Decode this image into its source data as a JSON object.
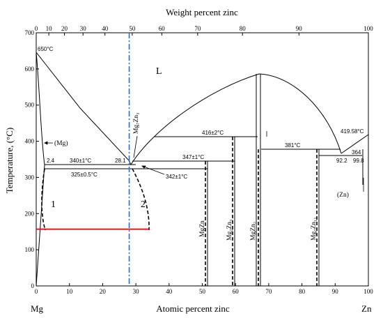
{
  "titles": {
    "top_axis": "Weight percent zinc",
    "bottom_axis": "Atomic percent zinc",
    "y_axis": "Temperature, (°C)",
    "left_element": "Mg",
    "right_element": "Zn"
  },
  "axes": {
    "x_at": {
      "min": 0,
      "max": 100,
      "ticks": [
        "0",
        "10",
        "20",
        "30",
        "40",
        "50",
        "60",
        "70",
        "80",
        "90",
        "100"
      ]
    },
    "y": {
      "min": 0,
      "max": 700,
      "ticks": [
        "0",
        "100",
        "200",
        "300",
        "400",
        "500",
        "600",
        "700"
      ]
    },
    "x_wt_ticks": [
      "0",
      "10",
      "20",
      "30",
      "40",
      "50",
      "60",
      "70",
      "80",
      "90",
      "100"
    ],
    "x_wt_positions_at": [
      0,
      3.8,
      8.5,
      14.1,
      20.7,
      28.9,
      37.8,
      48.6,
      62.1,
      79.1,
      100
    ]
  },
  "phases": {
    "liquid": "L",
    "mg_solid": "(Mg)",
    "zn_solid": "(Zn)",
    "mg7zn3": "Mg₇Zn₃",
    "mgzn": "MgZn",
    "mg2zn3": "Mg₂Zn₃",
    "mgzn2": "MgZn₂",
    "mg2zn11": "Mg₂Zn₁₁"
  },
  "annotations": {
    "mg_melting": "650°C",
    "zn_melting": "419.58°C",
    "t416": "416±2°C",
    "t381": "381°C",
    "t347": "347±1°C",
    "t342": "342±1°C",
    "t340": "340±1°C",
    "t325": "325±0.5°C",
    "c2_4": "2.4",
    "c28_1": "28.1",
    "c364": "364",
    "c92_2": "92.2",
    "c99_8": "99.8",
    "curve1": "1",
    "curve2": "2"
  },
  "colors": {
    "line": "#000000",
    "red_line": "#e8141c",
    "blue_line": "#1f6fd6",
    "frame": "#000000"
  },
  "markers": {
    "red_line_temperature": 157,
    "red_line_x_range": [
      0,
      34
    ],
    "blue_line_at": 28
  }
}
